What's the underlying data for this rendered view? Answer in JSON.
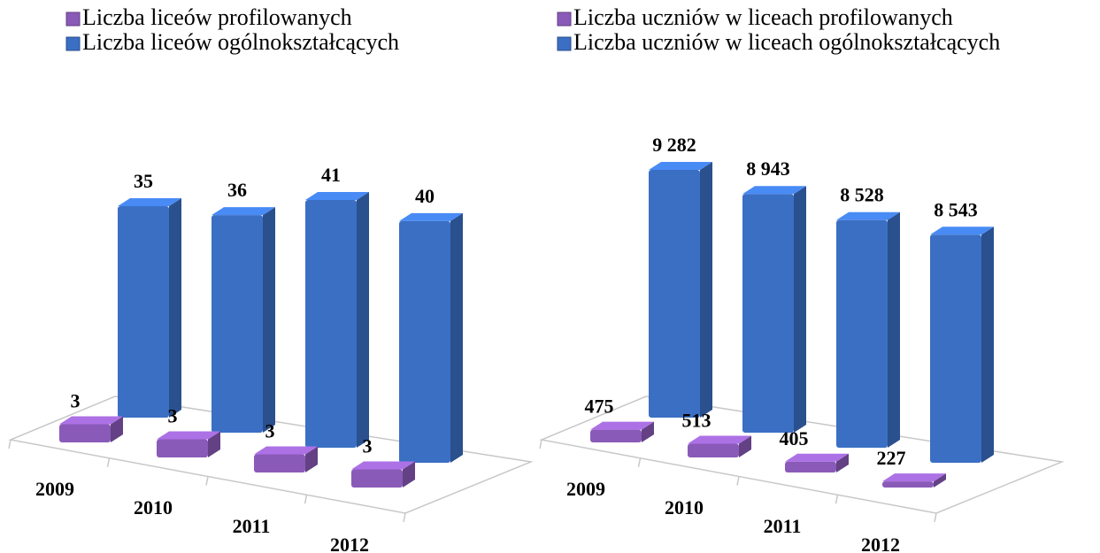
{
  "chart_data": [
    {
      "type": "bar3d",
      "categories": [
        "2009",
        "2010",
        "2011",
        "2012"
      ],
      "series": [
        {
          "name": "Liczba liceów profilowanych",
          "color": "#8a5ab8",
          "values": [
            3,
            3,
            3,
            3
          ]
        },
        {
          "name": "Liczba liceów ogólnokształcących",
          "color": "#3a6fc4",
          "values": [
            35,
            36,
            41,
            40
          ]
        }
      ]
    },
    {
      "type": "bar3d",
      "categories": [
        "2009",
        "2010",
        "2011",
        "2012"
      ],
      "series": [
        {
          "name": "Liczba uczniów w liceach profilowanych",
          "color": "#8a5ab8",
          "values": [
            475,
            513,
            405,
            227
          ]
        },
        {
          "name": "Liczba uczniów w liceach ogólnokształcących",
          "color": "#3a6fc4",
          "values": [
            9282,
            8943,
            8528,
            8543
          ],
          "value_labels": [
            "9 282",
            "8 943",
            "8 528",
            "8 543"
          ]
        }
      ]
    }
  ]
}
